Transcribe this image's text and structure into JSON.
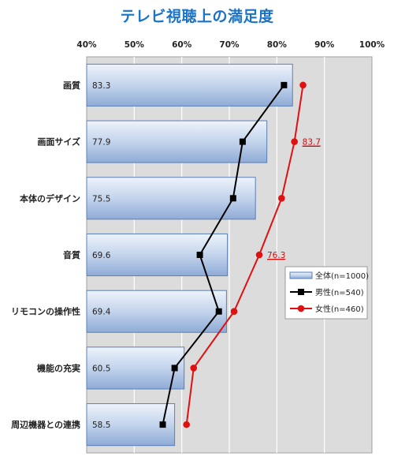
{
  "chart_data": {
    "type": "bar",
    "title": "テレビ視聴上の満足度",
    "orientation": "horizontal",
    "xlim": [
      40,
      100
    ],
    "ticks": [
      "40%",
      "50%",
      "60%",
      "70%",
      "80%",
      "90%",
      "100%"
    ],
    "categories": [
      "画質",
      "画面サイズ",
      "本体のデザイン",
      "音質",
      "リモコンの操作性",
      "機能の充実",
      "周辺機器との連携"
    ],
    "series": [
      {
        "name": "全体(n=1000)",
        "kind": "bar",
        "values": [
          83.3,
          77.9,
          75.5,
          69.6,
          69.4,
          60.5,
          58.5
        ],
        "labels": [
          "83.3",
          "77.9",
          "75.5",
          "69.6",
          "69.4",
          "60.5",
          "58.5"
        ]
      },
      {
        "name": "男性(n=540)",
        "kind": "line",
        "marker": "square",
        "color": "#000000",
        "values": [
          81.5,
          72.8,
          70.8,
          63.8,
          67.8,
          58.5,
          56.0
        ]
      },
      {
        "name": "女性(n=460)",
        "kind": "line",
        "marker": "circle",
        "color": "#e01010",
        "values": [
          85.5,
          83.7,
          81.0,
          76.3,
          71.0,
          62.5,
          61.0
        ]
      }
    ],
    "annotations": [
      {
        "series": 2,
        "index": 1,
        "text": "83.7"
      },
      {
        "series": 2,
        "index": 3,
        "text": "76.3"
      }
    ],
    "grid": true,
    "legend_position": "right"
  }
}
